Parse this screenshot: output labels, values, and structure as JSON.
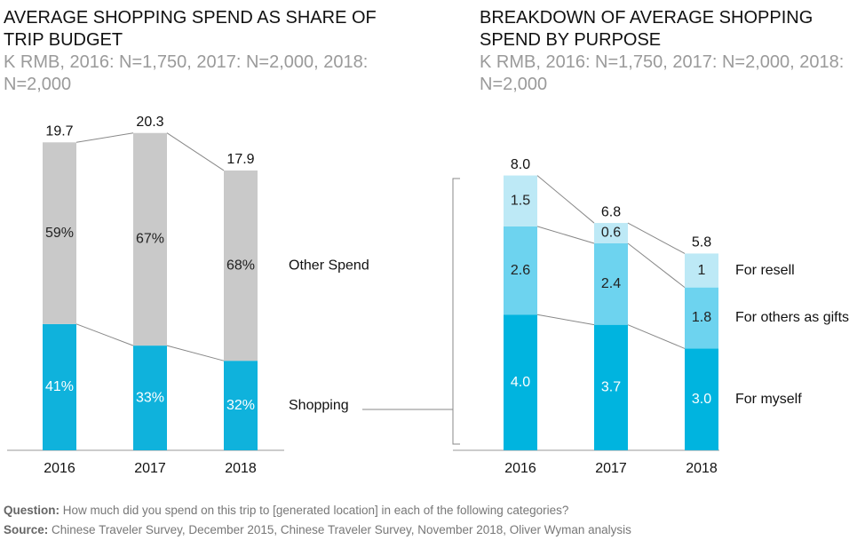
{
  "chart_data": [
    {
      "type": "bar",
      "stacking": "percent",
      "title": "AVERAGE SHOPPING SPEND AS SHARE OF TRIP BUDGET",
      "subtitle": "K RMB, 2016: N=1,750, 2017: N=2,000, 2018: N=2,000",
      "categories": [
        "2016",
        "2017",
        "2018"
      ],
      "totals": [
        19.7,
        20.3,
        17.9
      ],
      "series": [
        {
          "name": "Shopping",
          "color": "#0fb2dc",
          "label_color": "#ffffff",
          "values": [
            41,
            33,
            32
          ],
          "value_labels": [
            "41%",
            "33%",
            "32%"
          ]
        },
        {
          "name": "Other Spend",
          "color": "#c9c9c9",
          "label_color": "#222222",
          "values": [
            59,
            67,
            68
          ],
          "value_labels": [
            "59%",
            "67%",
            "68%"
          ]
        }
      ]
    },
    {
      "type": "bar",
      "stacking": "absolute",
      "title": "BREAKDOWN OF AVERAGE SHOPPING SPEND BY PURPOSE",
      "subtitle": "K RMB, 2016: N=1,750, 2017: N=2,000, 2018: N=2,000",
      "categories": [
        "2016",
        "2017",
        "2018"
      ],
      "totals": [
        8.0,
        6.8,
        5.8
      ],
      "total_labels": [
        "8.0",
        "6.8",
        "5.8"
      ],
      "series": [
        {
          "name": "For myself",
          "color": "#00b4df",
          "label_color": "#ffffff",
          "values": [
            4.0,
            3.7,
            3.0
          ],
          "value_labels": [
            "4.0",
            "3.7",
            "3.0"
          ]
        },
        {
          "name": "For others as gifts",
          "color": "#6dd3ef",
          "label_color": "#222222",
          "values": [
            2.6,
            2.4,
            1.8
          ]
        },
        {
          "name": "For resell",
          "color": "#bde9f6",
          "label_color": "#222222",
          "values": [
            1.5,
            0.6,
            1.0
          ]
        }
      ]
    }
  ],
  "footer": {
    "question_label": "Question:",
    "question": "How much did you spend on this trip to [generated location] in each of the following categories?",
    "source_label": "Source:",
    "source": "Chinese Traveler Survey, December 2015, Chinese Traveler Survey, November 2018, Oliver Wyman analysis"
  }
}
